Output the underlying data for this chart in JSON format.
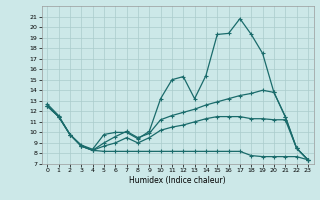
{
  "xlabel": "Humidex (Indice chaleur)",
  "bg_color": "#cce8e8",
  "grid_color": "#aacccc",
  "line_color": "#1a6b6b",
  "xlim": [
    -0.5,
    23.5
  ],
  "ylim": [
    7,
    22
  ],
  "yticks": [
    7,
    8,
    9,
    10,
    11,
    12,
    13,
    14,
    15,
    16,
    17,
    18,
    19,
    20,
    21
  ],
  "xticks": [
    0,
    1,
    2,
    3,
    4,
    5,
    6,
    7,
    8,
    9,
    10,
    11,
    12,
    13,
    14,
    15,
    16,
    17,
    18,
    19,
    20,
    21,
    22,
    23
  ],
  "line1_x": [
    0,
    1,
    2,
    3,
    4,
    5,
    6,
    7,
    8,
    9,
    10,
    11,
    12,
    13,
    14,
    15,
    16,
    17,
    18,
    19,
    20,
    21,
    22,
    23
  ],
  "line1_y": [
    12.7,
    11.6,
    9.8,
    8.8,
    8.4,
    9.8,
    10.0,
    10.0,
    9.4,
    10.1,
    13.2,
    15.0,
    15.3,
    13.2,
    15.4,
    19.3,
    19.4,
    20.8,
    19.3,
    17.5,
    13.8,
    11.5,
    8.5,
    7.4
  ],
  "line2_x": [
    0,
    1,
    2,
    3,
    4,
    5,
    6,
    7,
    8,
    9,
    10,
    11,
    12,
    13,
    14,
    15,
    16,
    17,
    18,
    19,
    20,
    21,
    22,
    23
  ],
  "line2_y": [
    12.5,
    11.5,
    9.8,
    8.7,
    8.3,
    9.0,
    9.6,
    10.1,
    9.5,
    9.9,
    11.2,
    11.6,
    11.9,
    12.2,
    12.6,
    12.9,
    13.2,
    13.5,
    13.7,
    14.0,
    13.8,
    11.5,
    8.5,
    7.4
  ],
  "line3_x": [
    0,
    1,
    2,
    3,
    4,
    5,
    6,
    7,
    8,
    9,
    10,
    11,
    12,
    13,
    14,
    15,
    16,
    17,
    18,
    19,
    20,
    21,
    22,
    23
  ],
  "line3_y": [
    12.5,
    11.5,
    9.8,
    8.7,
    8.3,
    8.7,
    9.0,
    9.5,
    9.0,
    9.5,
    10.2,
    10.5,
    10.7,
    11.0,
    11.3,
    11.5,
    11.5,
    11.5,
    11.3,
    11.3,
    11.2,
    11.2,
    8.5,
    7.4
  ],
  "line4_x": [
    0,
    1,
    2,
    3,
    4,
    5,
    6,
    7,
    8,
    9,
    10,
    11,
    12,
    13,
    14,
    15,
    16,
    17,
    18,
    19,
    20,
    21,
    22,
    23
  ],
  "line4_y": [
    12.5,
    11.5,
    9.8,
    8.7,
    8.3,
    8.2,
    8.2,
    8.2,
    8.2,
    8.2,
    8.2,
    8.2,
    8.2,
    8.2,
    8.2,
    8.2,
    8.2,
    8.2,
    7.8,
    7.7,
    7.7,
    7.7,
    7.7,
    7.4
  ]
}
